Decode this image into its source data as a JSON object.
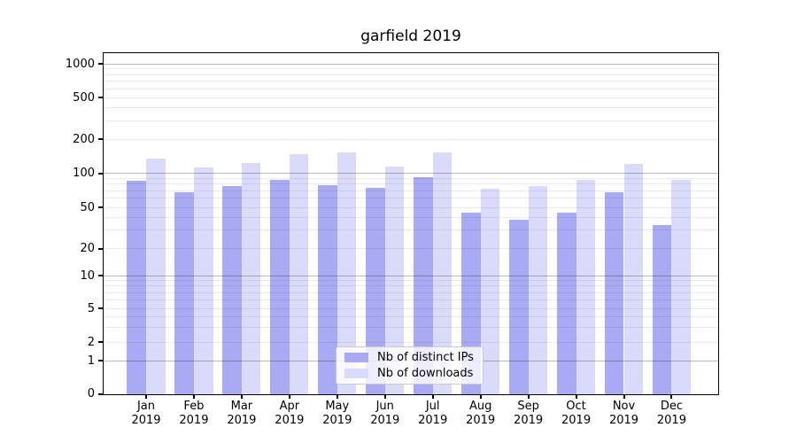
{
  "chart_data": {
    "type": "bar",
    "title": "garfield 2019",
    "categories": [
      "Jan 2019",
      "Feb 2019",
      "Mar 2019",
      "Apr 2019",
      "May 2019",
      "Jun 2019",
      "Jul 2019",
      "Aug 2019",
      "Sep 2019",
      "Oct 2019",
      "Nov 2019",
      "Dec 2019"
    ],
    "month_labels": [
      "Jan",
      "Feb",
      "Mar",
      "Apr",
      "May",
      "Jun",
      "Jul",
      "Aug",
      "Sep",
      "Oct",
      "Nov",
      "Dec"
    ],
    "year_label": "2019",
    "series": [
      {
        "name": "Nb of distinct IPs",
        "color": "#a9a9f4",
        "values": [
          86,
          68,
          77,
          87,
          78,
          74,
          93,
          44,
          38,
          44,
          68,
          34
        ]
      },
      {
        "name": "Nb of downloads",
        "color": "#dadafb",
        "values": [
          135,
          112,
          124,
          146,
          153,
          115,
          152,
          73,
          77,
          87,
          121,
          87
        ]
      }
    ],
    "y_scale": "symlog",
    "y_ticks": [
      1000,
      500,
      200,
      100,
      50,
      20,
      10,
      5,
      2,
      1,
      0
    ],
    "ylim": [
      0,
      1270
    ],
    "xlabel": "",
    "ylabel": "",
    "grid": true,
    "legend_position": "lower center"
  },
  "colors": {
    "background": "#ffffff",
    "spine": "#000000",
    "major_grid": "rgba(0,0,0,0.27)",
    "minor_grid": "rgba(0,0,0,0.08)",
    "text": "#000000"
  }
}
